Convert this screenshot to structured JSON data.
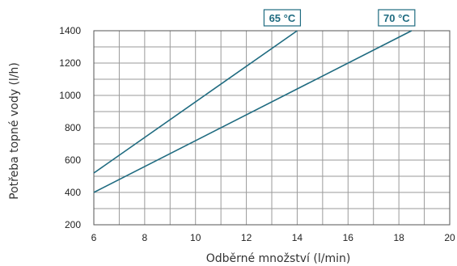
{
  "chart_data": {
    "type": "line",
    "title": "",
    "xlabel": "Odběrné množství (l/min)",
    "ylabel": "Potřeba topné vody (l/h)",
    "xlim": [
      6,
      20
    ],
    "ylim": [
      200,
      1400
    ],
    "xticks": [
      6,
      8,
      10,
      12,
      14,
      16,
      18,
      20
    ],
    "yticks": [
      200,
      400,
      600,
      800,
      1000,
      1200,
      1400
    ],
    "grid": true,
    "series": [
      {
        "name": "65 °C",
        "x": [
          6,
          14
        ],
        "y": [
          520,
          1400
        ]
      },
      {
        "name": "70 °C",
        "x": [
          6,
          18.5
        ],
        "y": [
          400,
          1400
        ]
      }
    ]
  },
  "colors": {
    "line": "#1f6b80",
    "grid": "#9a9a9a",
    "tag_border": "#1f6b80",
    "tag_text": "#1f6b80",
    "tag_fill": "#ffffff"
  }
}
